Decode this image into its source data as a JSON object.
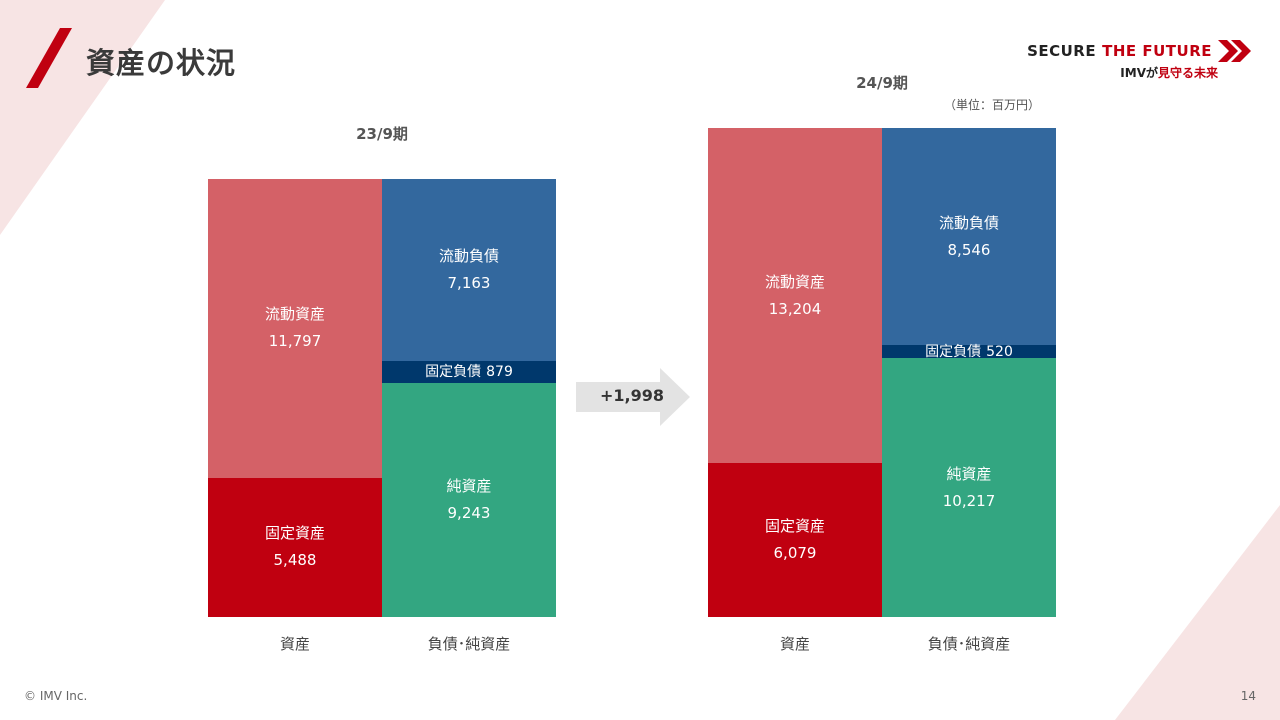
{
  "header": {
    "title": "資産の状況",
    "brand_part1": "SECURE",
    "brand_part2": "THE FUTURE",
    "tagline_part1": "IMVが",
    "tagline_part2": "見守る未来"
  },
  "unit_note": "（単位：百万円）",
  "arrow_label": "+1,998",
  "footer": {
    "copyright": "© IMV Inc.",
    "page_number": "14"
  },
  "colors": {
    "current_assets": "#d46167",
    "fixed_assets": "#c00010",
    "current_liabilities": "#33689e",
    "fixed_liabilities": "#00386c",
    "net_assets": "#33a681",
    "accent": "#c00010"
  },
  "chart_data": [
    {
      "type": "bar",
      "title": "23/9期",
      "categories": [
        "資産",
        "負債･純資産"
      ],
      "stacks": [
        {
          "category": "資産",
          "segments": [
            {
              "name": "流動資産",
              "value": 11797,
              "label": "11,797"
            },
            {
              "name": "固定資産",
              "value": 5488,
              "label": "5,488"
            }
          ]
        },
        {
          "category": "負債･純資産",
          "segments": [
            {
              "name": "流動負債",
              "value": 7163,
              "label": "7,163"
            },
            {
              "name": "固定負債",
              "value": 879,
              "label": "879"
            },
            {
              "name": "純資産",
              "value": 9243,
              "label": "9,243"
            }
          ]
        }
      ]
    },
    {
      "type": "bar",
      "title": "24/9期",
      "categories": [
        "資産",
        "負債･純資産"
      ],
      "stacks": [
        {
          "category": "資産",
          "segments": [
            {
              "name": "流動資産",
              "value": 13204,
              "label": "13,204"
            },
            {
              "name": "固定資産",
              "value": 6079,
              "label": "6,079"
            }
          ]
        },
        {
          "category": "負債･純資産",
          "segments": [
            {
              "name": "流動負債",
              "value": 8546,
              "label": "8,546"
            },
            {
              "name": "固定負債",
              "value": 520,
              "label": "520"
            },
            {
              "name": "純資産",
              "value": 10217,
              "label": "10,217"
            }
          ]
        }
      ]
    }
  ]
}
